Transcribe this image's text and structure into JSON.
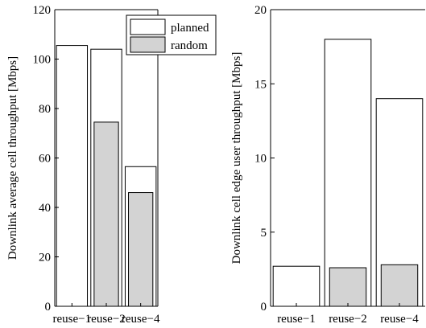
{
  "chart_data": [
    {
      "type": "bar",
      "categories": [
        "reuse−1",
        "reuse−2",
        "reuse−4"
      ],
      "series": [
        {
          "name": "planned",
          "values": [
            105.5,
            104,
            56.5
          ],
          "color": "#ffffff"
        },
        {
          "name": "random",
          "values": [
            null,
            74.5,
            46
          ],
          "color": "#d3d3d3"
        }
      ],
      "ylabel": "Downlink average cell throughput [Mbps]",
      "ylim": [
        0,
        120
      ],
      "yticks": [
        0,
        20,
        40,
        60,
        80,
        100,
        120
      ],
      "grid": false,
      "legend": "top-right"
    },
    {
      "type": "bar",
      "categories": [
        "reuse−1",
        "reuse−2",
        "reuse−4"
      ],
      "series": [
        {
          "name": "planned",
          "values": [
            2.7,
            18,
            14
          ],
          "color": "#ffffff"
        },
        {
          "name": "random",
          "values": [
            null,
            2.6,
            2.8
          ],
          "color": "#d3d3d3"
        }
      ],
      "ylabel": "Downlink cell edge user throughput [Mbps]",
      "ylim": [
        0,
        20
      ],
      "yticks": [
        0,
        5,
        10,
        15,
        20
      ],
      "grid": false
    }
  ],
  "legend": {
    "planned_label": "planned",
    "random_label": "random"
  }
}
